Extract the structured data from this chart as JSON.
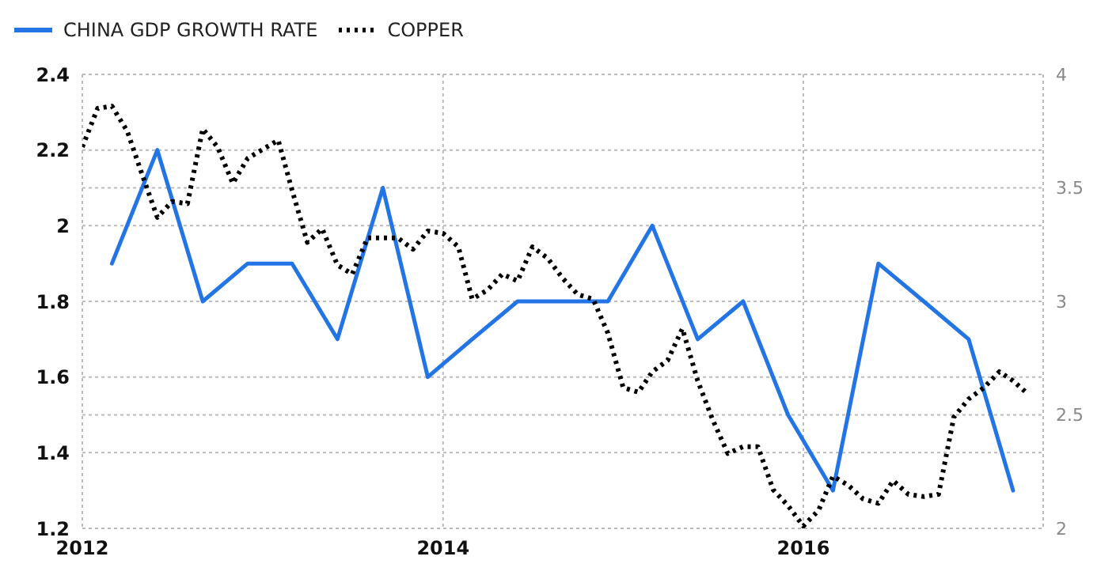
{
  "chart_data": {
    "type": "line",
    "legend": "top left",
    "grid": true,
    "marker": "none",
    "xlim": [
      "2012",
      "2017-05"
    ],
    "xticks": [
      "2012",
      "2014",
      "2016"
    ],
    "ylim": [
      1.2,
      2.4
    ],
    "yticks": [
      1.2,
      1.4,
      1.6,
      1.8,
      2,
      2.2,
      2.4
    ],
    "y2lim": [
      2,
      4
    ],
    "y2ticks": [
      2,
      2.5,
      3,
      3.5,
      4
    ],
    "series": [
      {
        "name": "CHINA GDP GROWTH RATE",
        "color": "#2375e6",
        "line_style": "solid",
        "x": [
          "2012-03",
          "2012-06",
          "2012-09",
          "2012-12",
          "2013-03",
          "2013-06",
          "2013-09",
          "2013-12",
          "2014-03",
          "2014-06",
          "2014-09",
          "2014-12",
          "2015-03",
          "2015-06",
          "2015-09",
          "2015-12",
          "2016-03",
          "2016-06",
          "2016-09",
          "2016-12",
          "2017-03"
        ],
        "values": [
          1.9,
          2.2,
          1.8,
          1.9,
          1.9,
          1.7,
          2.1,
          1.6,
          1.7,
          1.8,
          1.8,
          1.8,
          2.0,
          1.7,
          1.8,
          1.5,
          1.3,
          1.9,
          1.8,
          1.7,
          1.3
        ]
      },
      {
        "name": "COPPER",
        "color": "#000000",
        "line_style": "dotted",
        "axis": "y2",
        "x": [
          "2012-01",
          "2012-02",
          "2012-03",
          "2012-04",
          "2012-05",
          "2012-06",
          "2012-07",
          "2012-08",
          "2012-09",
          "2012-10",
          "2012-11",
          "2012-12",
          "2013-01",
          "2013-02",
          "2013-03",
          "2013-04",
          "2013-05",
          "2013-06",
          "2013-07",
          "2013-08",
          "2013-09",
          "2013-10",
          "2013-11",
          "2013-12",
          "2014-01",
          "2014-02",
          "2014-03",
          "2014-04",
          "2014-05",
          "2014-06",
          "2014-07",
          "2014-08",
          "2014-09",
          "2014-10",
          "2014-11",
          "2014-12",
          "2015-01",
          "2015-02",
          "2015-03",
          "2015-04",
          "2015-05",
          "2015-06",
          "2015-07",
          "2015-08",
          "2015-09",
          "2015-10",
          "2015-11",
          "2015-12",
          "2016-01",
          "2016-02",
          "2016-03",
          "2016-04",
          "2016-05",
          "2016-06",
          "2016-07",
          "2016-08",
          "2016-09",
          "2016-10",
          "2016-11",
          "2016-12",
          "2017-01",
          "2017-02",
          "2017-03",
          "2017-04"
        ],
        "values": [
          3.68,
          3.85,
          3.86,
          3.75,
          3.56,
          3.37,
          3.44,
          3.43,
          3.76,
          3.68,
          3.52,
          3.63,
          3.67,
          3.71,
          3.49,
          3.26,
          3.32,
          3.16,
          3.12,
          3.28,
          3.28,
          3.28,
          3.23,
          3.31,
          3.3,
          3.24,
          3.01,
          3.05,
          3.12,
          3.09,
          3.24,
          3.19,
          3.1,
          3.03,
          3.01,
          2.86,
          2.62,
          2.6,
          2.69,
          2.74,
          2.88,
          2.65,
          2.48,
          2.33,
          2.36,
          2.36,
          2.17,
          2.1,
          2.01,
          2.08,
          2.23,
          2.19,
          2.13,
          2.11,
          2.21,
          2.15,
          2.14,
          2.15,
          2.49,
          2.57,
          2.62,
          2.69,
          2.65,
          2.59
        ]
      }
    ]
  }
}
